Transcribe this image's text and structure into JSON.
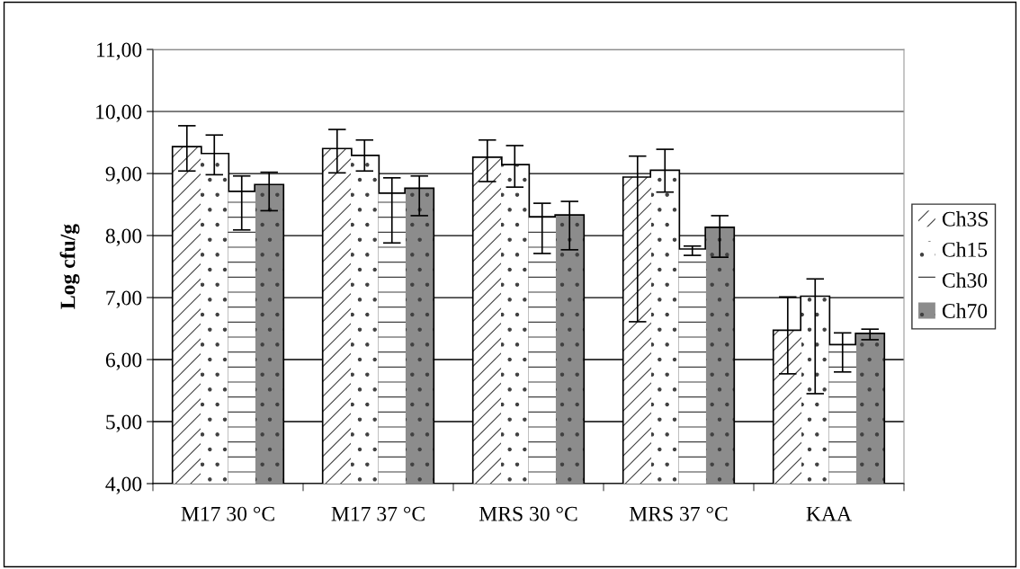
{
  "chart_data": {
    "type": "bar",
    "ylabel": "Log cfu/g",
    "categories": [
      "M17 30 °C",
      "M17 37 °C",
      "MRS 30 °C",
      "MRS 37 °C",
      "KAA"
    ],
    "series": [
      {
        "name": "Ch3S",
        "color": "#ffffff",
        "values": [
          9.42,
          9.39,
          9.25,
          8.93,
          6.46
        ],
        "errors": [
          [
            9.04,
            9.77
          ],
          [
            9.01,
            9.71
          ],
          [
            8.87,
            9.54
          ],
          [
            6.61,
            9.28
          ],
          [
            5.77,
            7.01
          ]
        ]
      },
      {
        "name": "Ch15",
        "color": "#ffffff",
        "values": [
          9.31,
          9.28,
          9.13,
          9.04,
          7.01
        ],
        "errors": [
          [
            8.98,
            9.62
          ],
          [
            9.04,
            9.54
          ],
          [
            8.78,
            9.45
          ],
          [
            8.7,
            9.39
          ],
          [
            5.45,
            7.3
          ]
        ]
      },
      {
        "name": "Ch30",
        "color": "#ffffff",
        "values": [
          8.7,
          8.67,
          8.29,
          7.77,
          6.23
        ],
        "errors": [
          [
            8.09,
            8.96
          ],
          [
            7.88,
            8.93
          ],
          [
            7.71,
            8.52
          ],
          [
            7.68,
            7.83
          ],
          [
            5.8,
            6.43
          ]
        ]
      },
      {
        "name": "Ch70",
        "color": "#8c8c8c",
        "values": [
          8.81,
          8.75,
          8.32,
          8.12,
          6.41
        ],
        "errors": [
          [
            8.4,
            9.02
          ],
          [
            8.32,
            8.96
          ],
          [
            7.77,
            8.55
          ],
          [
            7.65,
            8.32
          ],
          [
            6.32,
            6.49
          ]
        ]
      }
    ],
    "ylim": [
      4,
      11
    ],
    "yticks": [
      {
        "value": 4,
        "label": "4,00"
      },
      {
        "value": 5,
        "label": "5,00"
      },
      {
        "value": 6,
        "label": "6,00"
      },
      {
        "value": 7,
        "label": "7,00"
      },
      {
        "value": 8,
        "label": "8,00"
      },
      {
        "value": 9,
        "label": "9,00"
      },
      {
        "value": 10,
        "label": "10,00"
      },
      {
        "value": 11,
        "label": "11,00"
      }
    ],
    "grid": "y",
    "legend": "right"
  }
}
